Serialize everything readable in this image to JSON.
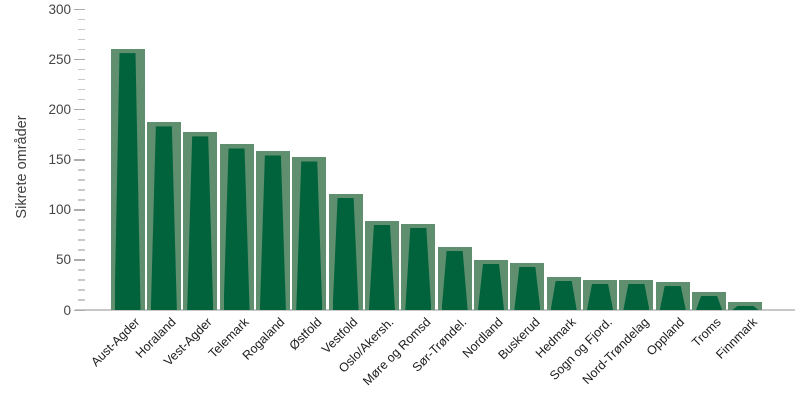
{
  "chart_data": {
    "type": "bar",
    "title": "",
    "xlabel": "",
    "ylabel": "Sikrete områder",
    "ylim": [
      0,
      300
    ],
    "y_major_ticks": [
      0,
      50,
      100,
      150,
      200,
      250,
      300
    ],
    "y_minor_step": 10,
    "grid": "off",
    "legend": "none",
    "categories": [
      "Aust-Agder",
      "Horaland",
      "Vest-Agder",
      "Telemark",
      "Rogaland",
      "Østfold",
      "Vestfold",
      "Oslo/Akersh.",
      "Møre og Romsd",
      "Sør-Trøndel.",
      "Nordland",
      "Buskerud",
      "Hedmark",
      "Sogn og Fjord.",
      "Nord-Trøndelag",
      "Oppland",
      "Troms",
      "Finnmark"
    ],
    "values": [
      260,
      187,
      177,
      165,
      158,
      152,
      116,
      89,
      86,
      63,
      50,
      47,
      33,
      30,
      30,
      28,
      18,
      8
    ],
    "colors": {
      "bar_fill": "#00633C",
      "bar_edge": "#5F8F6E",
      "axis_line": "#C8C8C8",
      "tick_major": "#ACACAC",
      "tick_minor": "#C9C9C9",
      "tick_label": "#454545",
      "category_label": "#1C1C1C",
      "ylabel": "#3F3F3F",
      "background": "#FFFFFF"
    }
  }
}
